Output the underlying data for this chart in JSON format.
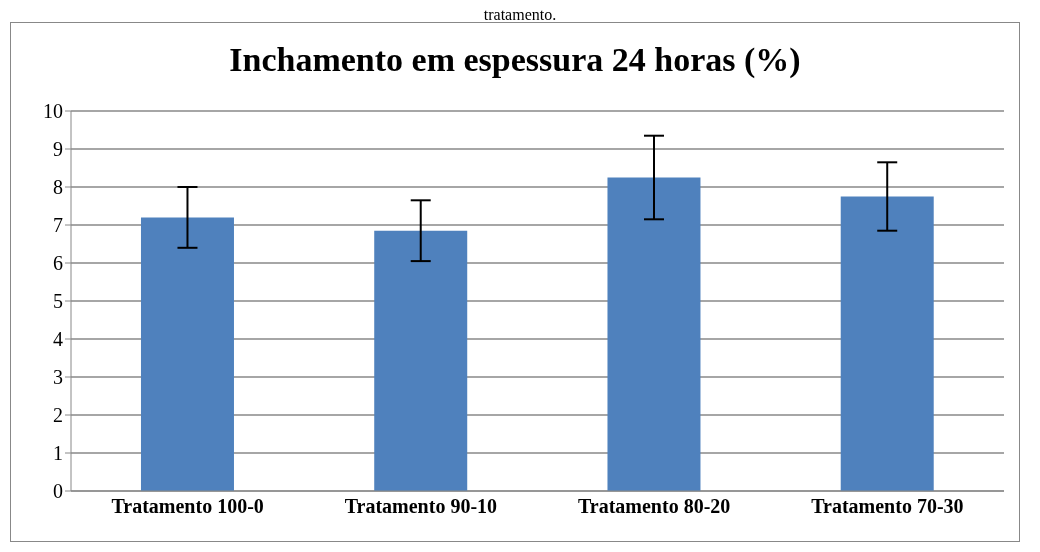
{
  "chart_data": {
    "type": "bar",
    "title": "Inchamento em espessura 24 horas (%)",
    "annotations": [
      "tratamento."
    ],
    "categories": [
      "Tratamento 100-0",
      "Tratamento 90-10",
      "Tratamento 80-20",
      "Tratamento 70-30"
    ],
    "values": [
      7.2,
      6.85,
      8.25,
      7.75
    ],
    "errors": [
      0.8,
      0.8,
      1.1,
      0.9
    ],
    "color": "#4f81bd",
    "ylim": [
      0,
      10
    ],
    "yticks": [
      0,
      1,
      2,
      3,
      4,
      5,
      6,
      7,
      8,
      9,
      10
    ],
    "grid": "y",
    "legend": false
  }
}
